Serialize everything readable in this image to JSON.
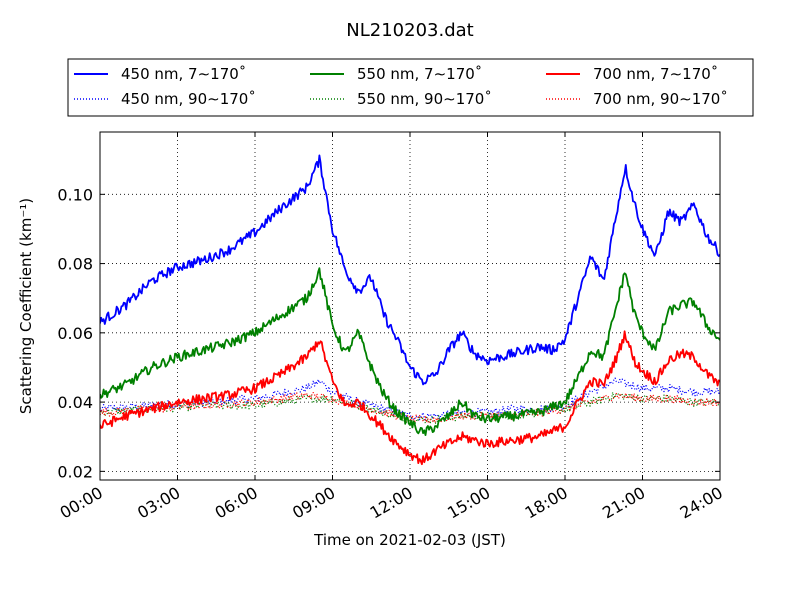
{
  "chart_data": {
    "type": "line",
    "title": "NL210203.dat",
    "xlabel": "Time on 2021-02-03 (JST)",
    "ylabel": "Scattering Coefficient (km⁻¹)",
    "xlim": [
      "00:00",
      "24:00"
    ],
    "ylim": [
      0.0175,
      0.118
    ],
    "x_ticks": [
      "00:00",
      "03:00",
      "06:00",
      "09:00",
      "12:00",
      "15:00",
      "18:00",
      "21:00",
      "24:00"
    ],
    "y_ticks": [
      "0.02",
      "0.04",
      "0.06",
      "0.08",
      "0.10"
    ],
    "grid": true,
    "legend_position": "top (above plot, boxed, 3 columns)",
    "series": [
      {
        "name": "450 nm, 7∼170˚",
        "color": "#0000ff",
        "style": "solid",
        "x": [
          "00:00",
          "01:00",
          "02:00",
          "03:00",
          "04:00",
          "05:00",
          "06:00",
          "07:00",
          "08:00",
          "08:30",
          "09:00",
          "09:30",
          "10:00",
          "10:30",
          "11:00",
          "11:30",
          "12:00",
          "12:30",
          "13:00",
          "13:30",
          "14:00",
          "14:30",
          "15:00",
          "15:30",
          "16:00",
          "16:30",
          "17:00",
          "17:30",
          "18:00",
          "18:30",
          "19:00",
          "19:30",
          "20:00",
          "20:20",
          "20:40",
          "21:00",
          "21:30",
          "22:00",
          "22:30",
          "23:00",
          "23:30",
          "24:00"
        ],
        "y": [
          0.063,
          0.068,
          0.075,
          0.079,
          0.081,
          0.084,
          0.089,
          0.096,
          0.102,
          0.11,
          0.09,
          0.078,
          0.072,
          0.076,
          0.065,
          0.058,
          0.05,
          0.046,
          0.048,
          0.055,
          0.06,
          0.054,
          0.052,
          0.053,
          0.054,
          0.055,
          0.056,
          0.055,
          0.058,
          0.07,
          0.082,
          0.075,
          0.095,
          0.108,
          0.098,
          0.09,
          0.082,
          0.095,
          0.092,
          0.097,
          0.088,
          0.083
        ]
      },
      {
        "name": "450 nm, 90∼170˚",
        "color": "#0000ff",
        "style": "dotted",
        "x": [
          "00:00",
          "02:00",
          "04:00",
          "06:00",
          "08:00",
          "08:30",
          "09:00",
          "10:00",
          "11:00",
          "12:00",
          "13:00",
          "14:00",
          "15:00",
          "16:00",
          "17:00",
          "18:00",
          "19:00",
          "20:00",
          "21:00",
          "22:00",
          "23:00",
          "24:00"
        ],
        "y": [
          0.038,
          0.039,
          0.04,
          0.041,
          0.044,
          0.046,
          0.043,
          0.04,
          0.038,
          0.036,
          0.036,
          0.037,
          0.037,
          0.038,
          0.038,
          0.039,
          0.043,
          0.046,
          0.044,
          0.044,
          0.043,
          0.043
        ]
      },
      {
        "name": "550 nm, 7∼170˚",
        "color": "#008000",
        "style": "solid",
        "x": [
          "00:00",
          "01:00",
          "02:00",
          "03:00",
          "04:00",
          "05:00",
          "06:00",
          "07:00",
          "08:00",
          "08:30",
          "09:00",
          "09:30",
          "10:00",
          "10:30",
          "11:00",
          "11:30",
          "12:00",
          "12:30",
          "13:00",
          "13:30",
          "14:00",
          "14:30",
          "15:00",
          "16:00",
          "17:00",
          "18:00",
          "18:30",
          "19:00",
          "19:30",
          "20:00",
          "20:20",
          "20:40",
          "21:00",
          "21:30",
          "22:00",
          "22:30",
          "23:00",
          "23:30",
          "24:00"
        ],
        "y": [
          0.042,
          0.045,
          0.05,
          0.053,
          0.055,
          0.057,
          0.06,
          0.065,
          0.07,
          0.078,
          0.062,
          0.054,
          0.06,
          0.05,
          0.042,
          0.037,
          0.034,
          0.031,
          0.033,
          0.036,
          0.04,
          0.036,
          0.035,
          0.036,
          0.037,
          0.04,
          0.047,
          0.055,
          0.053,
          0.068,
          0.078,
          0.066,
          0.06,
          0.055,
          0.066,
          0.068,
          0.069,
          0.062,
          0.058
        ]
      },
      {
        "name": "550 nm, 90∼170˚",
        "color": "#008000",
        "style": "dotted",
        "x": [
          "00:00",
          "02:00",
          "04:00",
          "06:00",
          "08:00",
          "09:00",
          "10:00",
          "11:00",
          "12:00",
          "13:00",
          "14:00",
          "15:00",
          "16:00",
          "17:00",
          "18:00",
          "19:00",
          "20:00",
          "21:00",
          "22:00",
          "23:00",
          "24:00"
        ],
        "y": [
          0.037,
          0.038,
          0.039,
          0.039,
          0.041,
          0.041,
          0.039,
          0.037,
          0.035,
          0.035,
          0.036,
          0.036,
          0.036,
          0.037,
          0.038,
          0.04,
          0.042,
          0.041,
          0.041,
          0.04,
          0.04
        ]
      },
      {
        "name": "700 nm, 7∼170˚",
        "color": "#ff0000",
        "style": "solid",
        "x": [
          "00:00",
          "01:00",
          "02:00",
          "03:00",
          "04:00",
          "05:00",
          "06:00",
          "07:00",
          "08:00",
          "08:30",
          "09:00",
          "09:30",
          "10:00",
          "10:30",
          "11:00",
          "11:30",
          "12:00",
          "12:30",
          "13:00",
          "13:30",
          "14:00",
          "14:30",
          "15:00",
          "16:00",
          "17:00",
          "18:00",
          "18:30",
          "19:00",
          "19:30",
          "20:00",
          "20:20",
          "20:40",
          "21:00",
          "21:30",
          "22:00",
          "22:30",
          "23:00",
          "23:30",
          "24:00"
        ],
        "y": [
          0.033,
          0.036,
          0.038,
          0.04,
          0.041,
          0.042,
          0.044,
          0.048,
          0.053,
          0.058,
          0.046,
          0.039,
          0.04,
          0.036,
          0.032,
          0.028,
          0.025,
          0.023,
          0.026,
          0.028,
          0.03,
          0.029,
          0.028,
          0.029,
          0.03,
          0.033,
          0.04,
          0.046,
          0.045,
          0.053,
          0.06,
          0.052,
          0.049,
          0.046,
          0.052,
          0.054,
          0.053,
          0.048,
          0.045
        ]
      },
      {
        "name": "700 nm, 90∼170˚",
        "color": "#ff0000",
        "style": "dotted",
        "x": [
          "00:00",
          "02:00",
          "04:00",
          "06:00",
          "08:00",
          "09:00",
          "10:00",
          "11:00",
          "12:00",
          "13:00",
          "14:00",
          "15:00",
          "16:00",
          "17:00",
          "18:00",
          "19:00",
          "20:00",
          "21:00",
          "22:00",
          "23:00",
          "24:00"
        ],
        "y": [
          0.037,
          0.038,
          0.039,
          0.04,
          0.042,
          0.041,
          0.039,
          0.037,
          0.035,
          0.035,
          0.036,
          0.036,
          0.036,
          0.037,
          0.038,
          0.04,
          0.042,
          0.041,
          0.041,
          0.04,
          0.04
        ]
      }
    ]
  }
}
